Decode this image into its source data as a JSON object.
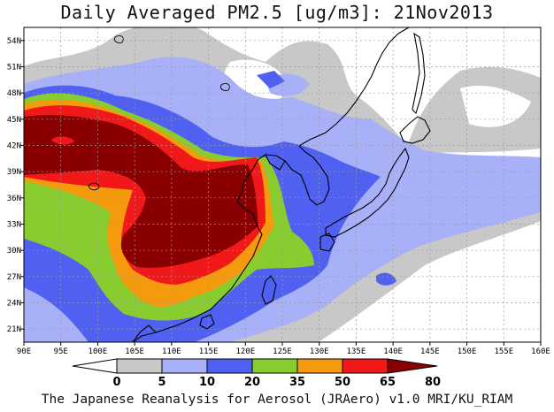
{
  "title": "Daily Averaged PM2.5 [ug/m3]: 21Nov2013",
  "credit": "The Japanese Reanalysis for Aerosol (JRAero) v1.0 MRI/KU_RIAM",
  "map": {
    "lon_range": [
      90,
      160
    ],
    "lat_range": [
      19.5,
      55.5
    ],
    "lon_ticks": [
      "90E",
      "95E",
      "100E",
      "105E",
      "110E",
      "115E",
      "120E",
      "125E",
      "130E",
      "135E",
      "140E",
      "145E",
      "150E",
      "155E",
      "160E"
    ],
    "lat_ticks": [
      "21N",
      "24N",
      "27N",
      "30N",
      "33N",
      "36N",
      "39N",
      "42N",
      "45N",
      "48N",
      "51N",
      "54N"
    ],
    "grid": true
  },
  "colorbar": {
    "labels": [
      "0",
      "5",
      "10",
      "20",
      "35",
      "50",
      "65",
      "80"
    ],
    "colors": [
      "#ffffff",
      "#c8c8c8",
      "#a8b0f8",
      "#5060f0",
      "#88cc30",
      "#f59a0c",
      "#f01818",
      "#8a0000"
    ]
  }
}
